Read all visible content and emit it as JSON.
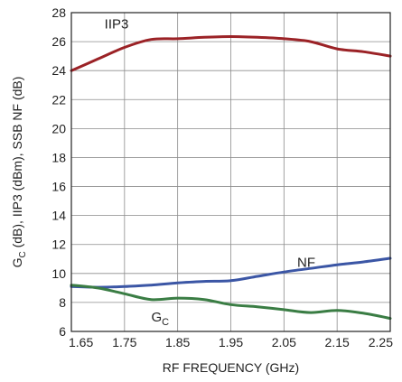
{
  "chart_data": {
    "type": "line",
    "xlabel": "RF FREQUENCY (GHz)",
    "ylabel": {
      "main": "G",
      "sub": "C",
      "rest": " (dB), IIP3 (dBm), SSB NF (dB)"
    },
    "xlim": [
      1.65,
      2.25
    ],
    "ylim": [
      6,
      28
    ],
    "xticks": [
      "1.65",
      "1.75",
      "1.85",
      "1.95",
      "2.05",
      "2.15",
      "2.25"
    ],
    "yticks": [
      "6",
      "8",
      "10",
      "12",
      "14",
      "16",
      "18",
      "20",
      "22",
      "24",
      "26",
      "28"
    ],
    "grid": true,
    "series": [
      {
        "name": "IIP3",
        "label_main": "IIP3",
        "label_sub": "",
        "color": "#9b2226",
        "x": [
          1.65,
          1.7,
          1.75,
          1.8,
          1.85,
          1.9,
          1.95,
          2.0,
          2.05,
          2.1,
          2.15,
          2.2,
          2.25
        ],
        "y": [
          24.0,
          24.8,
          25.6,
          26.15,
          26.2,
          26.3,
          26.35,
          26.3,
          26.2,
          26.0,
          25.5,
          25.3,
          25.0
        ]
      },
      {
        "name": "NF",
        "label_main": "NF",
        "label_sub": "",
        "color": "#3b56a5",
        "x": [
          1.65,
          1.7,
          1.75,
          1.8,
          1.85,
          1.9,
          1.95,
          2.0,
          2.05,
          2.1,
          2.15,
          2.2,
          2.25
        ],
        "y": [
          9.1,
          9.05,
          9.1,
          9.2,
          9.35,
          9.45,
          9.5,
          9.8,
          10.1,
          10.35,
          10.6,
          10.8,
          11.05
        ]
      },
      {
        "name": "GC",
        "label_main": "G",
        "label_sub": "C",
        "color": "#3a7d44",
        "x": [
          1.65,
          1.7,
          1.75,
          1.8,
          1.85,
          1.9,
          1.95,
          2.0,
          2.05,
          2.1,
          2.15,
          2.2,
          2.25
        ],
        "y": [
          9.2,
          9.0,
          8.6,
          8.2,
          8.3,
          8.2,
          7.85,
          7.7,
          7.5,
          7.3,
          7.45,
          7.25,
          6.9
        ]
      }
    ]
  }
}
